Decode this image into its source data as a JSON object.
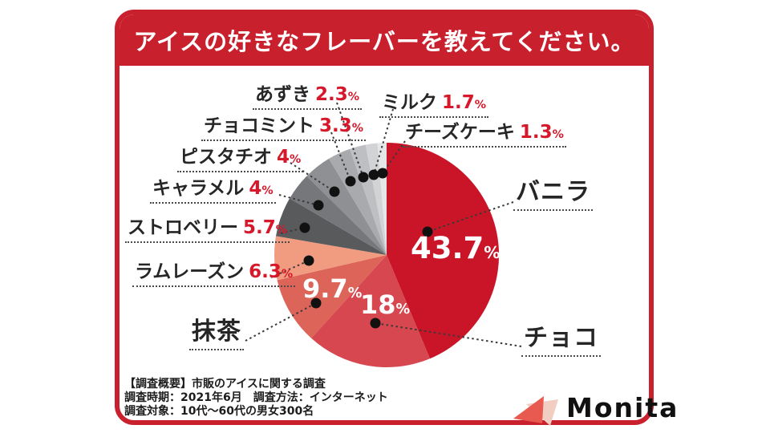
{
  "title": "アイスの好きなフレーバーを教えてください。",
  "chart_data": {
    "type": "pie",
    "title": "アイスの好きなフレーバーを教えてください。",
    "unit": "%",
    "legend_position": "around",
    "slices": [
      {
        "label": "バニラ",
        "value": 43.7,
        "pct": "43.7",
        "color": "#ca1528"
      },
      {
        "label": "チョコ",
        "value": 18,
        "pct": "18",
        "color": "#d7474f"
      },
      {
        "label": "抹茶",
        "value": 9.7,
        "pct": "9.7",
        "color": "#dd6459"
      },
      {
        "label": "ラムレーズン",
        "value": 6.3,
        "pct": "6.3",
        "color": "#f19c80"
      },
      {
        "label": "ストロベリー",
        "value": 5.7,
        "pct": "5.7",
        "color": "#595a5c"
      },
      {
        "label": "キャラメル",
        "value": 4,
        "pct": "4",
        "color": "#76777b"
      },
      {
        "label": "ピスタチオ",
        "value": 4,
        "pct": "4",
        "color": "#8e9093"
      },
      {
        "label": "チョコミント",
        "value": 3.3,
        "pct": "3.3",
        "color": "#a8aaad"
      },
      {
        "label": "あずき",
        "value": 2.3,
        "pct": "2.3",
        "color": "#bebfc2"
      },
      {
        "label": "ミルク",
        "value": 1.7,
        "pct": "1.7",
        "color": "#d2d3d5"
      },
      {
        "label": "チーズケーキ",
        "value": 1.3,
        "pct": "1.3",
        "color": "#e5e6e8"
      }
    ]
  },
  "footer": {
    "line1": "【調査概要】市販のアイスに関する調査",
    "line2": "調査時期：2021年6月　調査方法：インターネット",
    "line3": "調査対象：10代〜60代の男女300名"
  },
  "logo": {
    "text": "Monita",
    "icon": "triangle-icon",
    "icon_color": "#e85a4f",
    "icon_shadow_color": "#f2cdc2"
  },
  "colors": {
    "accent_red": "#c9202e",
    "percent_red": "#d6182b",
    "text_black": "#262626"
  }
}
